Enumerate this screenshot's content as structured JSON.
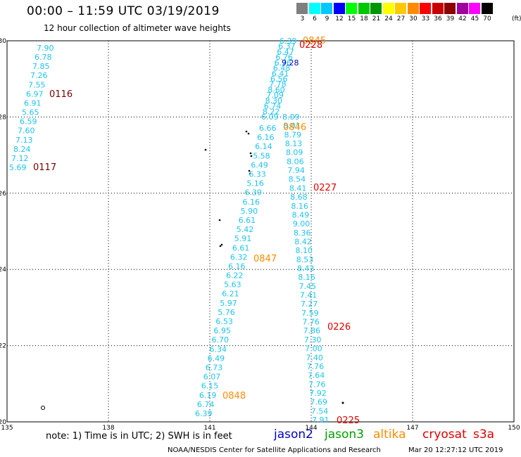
{
  "header": {
    "title": "00:00 – 11:59 UTC 03/19/2019",
    "subtitle": "12 hour collection of altimeter wave heights"
  },
  "colorbar": {
    "labels": [
      "3",
      "6",
      "9",
      "12",
      "15",
      "18",
      "21",
      "24",
      "27",
      "30",
      "33",
      "36",
      "39",
      "42",
      "45",
      "70"
    ],
    "unit": "(ft)",
    "colors": [
      "#7f7f7f",
      "#00ffff",
      "#00c8ff",
      "#0000ff",
      "#00ff00",
      "#00c800",
      "#009600",
      "#ffff00",
      "#ffc800",
      "#ff8c00",
      "#ff0000",
      "#c80000",
      "#8b0000",
      "#a000a0",
      "#ff00ff",
      "#000000"
    ]
  },
  "map": {
    "lon_ticks": [
      "135",
      "138",
      "141",
      "144",
      "147",
      "150"
    ],
    "lat_ticks": [
      "30",
      "28",
      "26",
      "24",
      "22",
      "20"
    ],
    "colors": {
      "swh": "#1ec4ee",
      "jason2": "#0000c8",
      "cryosat": "#e00000",
      "altika": "#ff8c00",
      "pass_old": "#7a0000"
    }
  },
  "tracks": {
    "west": [
      "7.90",
      "6.78",
      "7.85",
      "7.26",
      "7.55",
      "6.97",
      "6.91",
      "5.65",
      "6.59",
      "7.60",
      "7.13",
      "8.24",
      "7.12",
      "5.69"
    ],
    "mid": [
      "6.66",
      "6.16",
      "6.14",
      "5.58",
      "6.49",
      "6.33",
      "5.16",
      "6.39",
      "6.16",
      "5.90",
      "6.61",
      "5.42",
      "5.91",
      "6.61",
      "6.32",
      "6.16",
      "6.22",
      "5.63",
      "6.21",
      "5.97",
      "5.76",
      "6.53",
      "6.95",
      "6.70",
      "6.34",
      "6.49",
      "6.73",
      "6.07",
      "6.15",
      "6.19",
      "6.74",
      "6.39"
    ],
    "east": [
      "8.09",
      "8.01",
      "8.79",
      "8.13",
      "8.09",
      "8.06",
      "7.94",
      "8.54",
      "8.41",
      "8.68",
      "8.16",
      "8.49",
      "9.00",
      "8.36",
      "8.42",
      "8.10",
      "8.53",
      "8.43",
      "8.16",
      "7.45",
      "7.41",
      "7.27",
      "7.59",
      "7.76",
      "7.86",
      "7.30",
      "7.00",
      "7.40",
      "7.76",
      "7.64",
      "7.76",
      "7.92",
      "7.69",
      "7.54",
      "7.91"
    ],
    "top_cluster": [
      "6.39",
      "6.37",
      "6.47",
      "6.76",
      "6.76",
      "6.48",
      "6.41",
      "6.56",
      "7.78",
      "8.60",
      "7.09",
      "8.30",
      "6.74",
      "8.22",
      "6.09"
    ],
    "jason2_value": "9.28"
  },
  "pass_labels": [
    "0116",
    "0117",
    "0845",
    "0228",
    "0846",
    "0227",
    "0847",
    "0226",
    "0848",
    "0225"
  ],
  "footer": {
    "note": "note: 1) Time is in UTC; 2) SWH is in feet",
    "satellites": [
      "jason2",
      "jason3",
      "altika",
      "cryosat",
      "s3a"
    ],
    "satellite_colors": [
      "#0000c8",
      "#00a000",
      "#ff8c00",
      "#e00000",
      "#e00000"
    ],
    "credit": "NOAA/NESDIS Center for Satellite Applications and Research",
    "timestamp": "Mar 20 12:27:12 UTC 2019"
  }
}
